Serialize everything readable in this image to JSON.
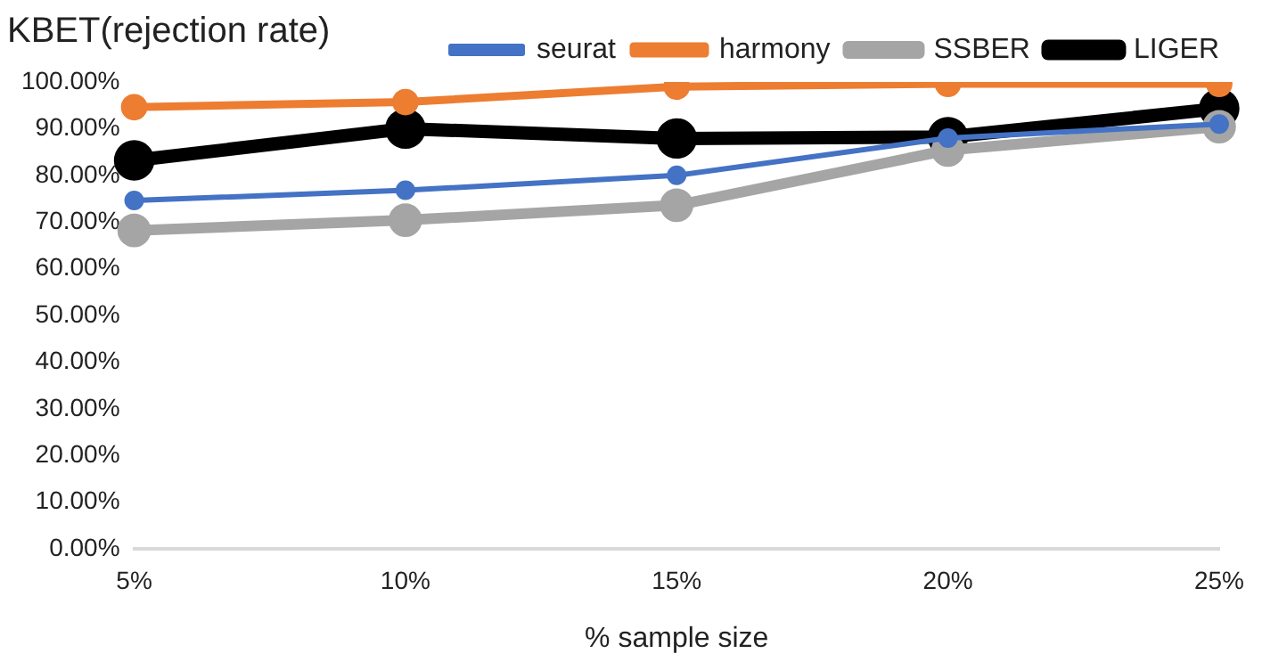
{
  "chart_data": {
    "type": "line",
    "title": "KBET(rejection rate)",
    "xlabel": "% sample size",
    "categories": [
      "5%",
      "10%",
      "15%",
      "20%",
      "25%"
    ],
    "series": [
      {
        "name": "seurat",
        "color": "#4472c4",
        "values": [
          74.6,
          76.8,
          80,
          88,
          91
        ]
      },
      {
        "name": "harmony",
        "color": "#ed7d31",
        "values": [
          94.6,
          95.7,
          99,
          99.6,
          99.6
        ]
      },
      {
        "name": "SSBER",
        "color": "#a5a5a5",
        "values": [
          68.2,
          70.4,
          73.6,
          85.4,
          90.4
        ]
      },
      {
        "name": "LIGER",
        "color": "#000000",
        "values": [
          83.2,
          90,
          87.9,
          88.2,
          94.3
        ]
      }
    ],
    "ylim": [
      0,
      100
    ],
    "yticks": [
      {
        "value": 0,
        "label": "0.00%"
      },
      {
        "value": 10,
        "label": "10.00%"
      },
      {
        "value": 20,
        "label": "20.00%"
      },
      {
        "value": 30,
        "label": "30.00%"
      },
      {
        "value": 40,
        "label": "40.00%"
      },
      {
        "value": 50,
        "label": "50.00%"
      },
      {
        "value": 60,
        "label": "60.00%"
      },
      {
        "value": 70,
        "label": "70.00%"
      },
      {
        "value": 80,
        "label": "80.00%"
      },
      {
        "value": 90,
        "label": "90.00%"
      },
      {
        "value": 100,
        "label": "100.00%"
      }
    ],
    "grid": false,
    "legend": "top right",
    "marker": "circle",
    "line_style": "solid"
  }
}
